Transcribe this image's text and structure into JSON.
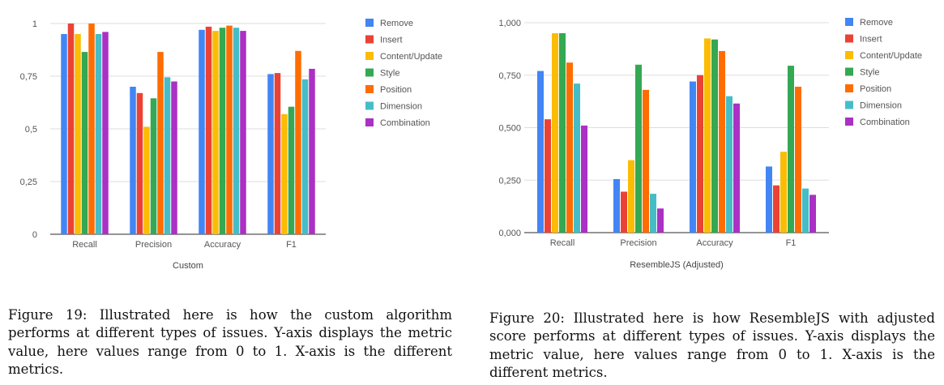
{
  "chart_data": [
    {
      "type": "bar",
      "xlabel": "Custom",
      "ylabel": "",
      "ylim": [
        0,
        1
      ],
      "yticks": [
        "0",
        "0,25",
        "0,5",
        "0,75",
        "1"
      ],
      "categories": [
        "Recall",
        "Precision",
        "Accuracy",
        "F1"
      ],
      "legend_position": "right",
      "grid": true,
      "series": [
        {
          "name": "Remove",
          "color": "#4285f4",
          "values": [
            0.95,
            0.7,
            0.97,
            0.76
          ]
        },
        {
          "name": "Insert",
          "color": "#ea4335",
          "values": [
            1.0,
            0.67,
            0.985,
            0.765
          ]
        },
        {
          "name": "Content/Update",
          "color": "#fbbc04",
          "values": [
            0.95,
            0.51,
            0.965,
            0.57
          ]
        },
        {
          "name": "Style",
          "color": "#34a853",
          "values": [
            0.865,
            0.645,
            0.98,
            0.605
          ]
        },
        {
          "name": "Position",
          "color": "#ff6d01",
          "values": [
            1.0,
            0.865,
            0.99,
            0.87
          ]
        },
        {
          "name": "Dimension",
          "color": "#46bdc6",
          "values": [
            0.95,
            0.745,
            0.98,
            0.735
          ]
        },
        {
          "name": "Combination",
          "color": "#ab30c4",
          "values": [
            0.96,
            0.725,
            0.965,
            0.785
          ]
        }
      ]
    },
    {
      "type": "bar",
      "xlabel": "ResembleJS (Adjusted)",
      "ylabel": "",
      "ylim": [
        0,
        1
      ],
      "yticks": [
        "0,000",
        "0,250",
        "0,500",
        "0,750",
        "1,000"
      ],
      "categories": [
        "Recall",
        "Precision",
        "Accuracy",
        "F1"
      ],
      "legend_position": "right",
      "grid": true,
      "series": [
        {
          "name": "Remove",
          "color": "#4285f4",
          "values": [
            0.77,
            0.255,
            0.72,
            0.315
          ]
        },
        {
          "name": "Insert",
          "color": "#ea4335",
          "values": [
            0.54,
            0.195,
            0.75,
            0.225
          ]
        },
        {
          "name": "Content/Update",
          "color": "#fbbc04",
          "values": [
            0.95,
            0.345,
            0.925,
            0.385
          ]
        },
        {
          "name": "Style",
          "color": "#34a853",
          "values": [
            0.95,
            0.8,
            0.92,
            0.795
          ]
        },
        {
          "name": "Position",
          "color": "#ff6d01",
          "values": [
            0.81,
            0.68,
            0.865,
            0.695
          ]
        },
        {
          "name": "Dimension",
          "color": "#46bdc6",
          "values": [
            0.71,
            0.185,
            0.65,
            0.21
          ]
        },
        {
          "name": "Combination",
          "color": "#ab30c4",
          "values": [
            0.51,
            0.115,
            0.615,
            0.18
          ]
        }
      ]
    }
  ],
  "captions": {
    "left": "Figure 19: Illustrated here is how the custom algorithm performs at different types of issues. Y-axis displays the metric value, here values range from 0 to 1. X-axis is the different metrics.",
    "right": "Figure 20: Illustrated here is how ResembleJS with adjusted score performs at different types of issues. Y-axis displays the metric value, here values range from 0 to 1. X-axis is the different metrics."
  }
}
